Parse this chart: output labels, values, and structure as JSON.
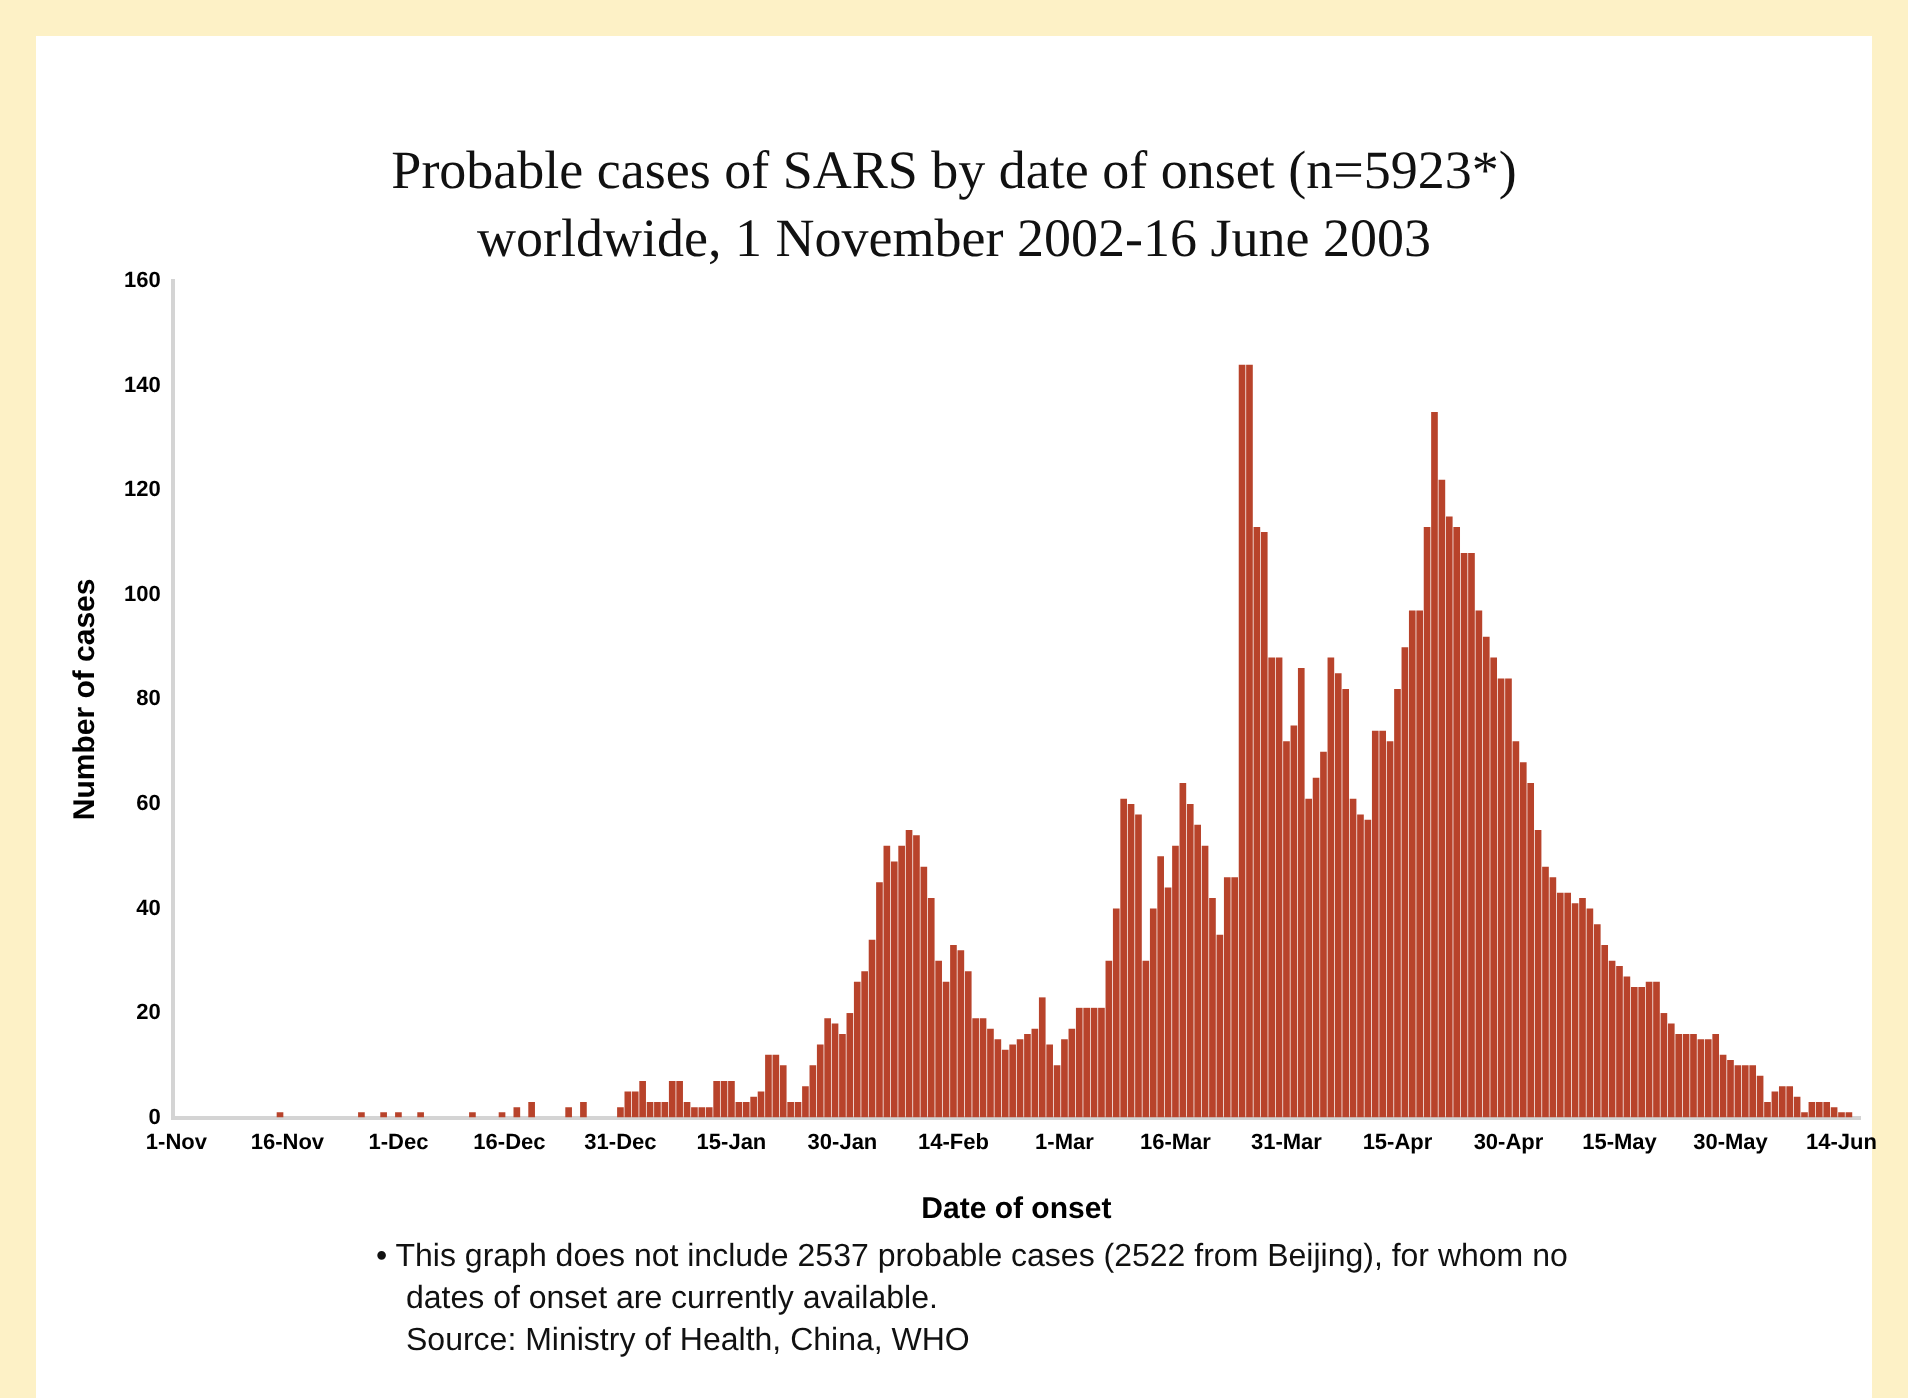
{
  "chart_data": {
    "type": "bar",
    "title": "Probable cases of SARS by date of onset (n=5923*)",
    "subtitle": "worldwide, 1 November 2002-16 June 2003",
    "xlabel": "Date of onset",
    "ylabel": "Number of cases",
    "categories": [
      "1-Nov",
      null,
      null,
      null,
      null,
      null,
      null,
      null,
      null,
      null,
      null,
      null,
      null,
      null,
      null,
      "16-Nov",
      null,
      null,
      null,
      null,
      null,
      null,
      null,
      null,
      null,
      null,
      null,
      null,
      null,
      null,
      "1-Dec",
      null,
      null,
      null,
      null,
      null,
      null,
      null,
      null,
      null,
      null,
      null,
      null,
      null,
      null,
      "16-Dec",
      null,
      null,
      null,
      null,
      null,
      null,
      null,
      null,
      null,
      null,
      null,
      null,
      null,
      null,
      "31-Dec",
      null,
      null,
      null,
      null,
      null,
      null,
      null,
      null,
      null,
      null,
      null,
      null,
      null,
      null,
      "15-Jan",
      null,
      null,
      null,
      null,
      null,
      null,
      null,
      null,
      null,
      null,
      null,
      null,
      null,
      null,
      "30-Jan",
      null,
      null,
      null,
      null,
      null,
      null,
      null,
      null,
      null,
      null,
      null,
      null,
      null,
      null,
      "14-Feb",
      null,
      null,
      null,
      null,
      null,
      null,
      null,
      null,
      null,
      null,
      null,
      null,
      null,
      null,
      "1-Mar",
      null,
      null,
      null,
      null,
      null,
      null,
      null,
      null,
      null,
      null,
      null,
      null,
      null,
      null,
      "16-Mar",
      null,
      null,
      null,
      null,
      null,
      null,
      null,
      null,
      null,
      null,
      null,
      null,
      null,
      null,
      "31-Mar",
      null,
      null,
      null,
      null,
      null,
      null,
      null,
      null,
      null,
      null,
      null,
      null,
      null,
      null,
      "15-Apr",
      null,
      null,
      null,
      null,
      null,
      null,
      null,
      null,
      null,
      null,
      null,
      null,
      null,
      null,
      "30-Apr",
      null,
      null,
      null,
      null,
      null,
      null,
      null,
      null,
      null,
      null,
      null,
      null,
      null,
      null,
      "15-May",
      null,
      null,
      null,
      null,
      null,
      null,
      null,
      null,
      null,
      null,
      null,
      null,
      null,
      null,
      "30-May",
      null,
      null,
      null,
      null,
      null,
      null,
      null,
      null,
      null,
      null,
      null,
      null,
      null,
      null,
      "14-Jun",
      null,
      null
    ],
    "values": [
      0,
      0,
      0,
      0,
      0,
      0,
      0,
      0,
      0,
      0,
      0,
      0,
      0,
      0,
      1,
      0,
      0,
      0,
      0,
      0,
      0,
      0,
      0,
      0,
      0,
      1,
      0,
      0,
      1,
      0,
      1,
      0,
      0,
      1,
      0,
      0,
      0,
      0,
      0,
      0,
      1,
      0,
      0,
      0,
      1,
      0,
      2,
      0,
      3,
      0,
      0,
      0,
      0,
      2,
      0,
      3,
      0,
      0,
      0,
      0,
      2,
      5,
      5,
      7,
      3,
      3,
      3,
      7,
      7,
      3,
      2,
      2,
      2,
      7,
      7,
      7,
      3,
      3,
      4,
      5,
      12,
      12,
      10,
      3,
      3,
      6,
      10,
      14,
      19,
      18,
      16,
      20,
      26,
      28,
      34,
      45,
      52,
      49,
      52,
      55,
      54,
      48,
      42,
      30,
      26,
      33,
      32,
      28,
      19,
      19,
      17,
      15,
      13,
      14,
      15,
      16,
      17,
      23,
      14,
      10,
      15,
      17,
      21,
      21,
      21,
      21,
      30,
      40,
      61,
      60,
      58,
      30,
      40,
      50,
      44,
      52,
      64,
      60,
      56,
      52,
      42,
      35,
      46,
      46,
      144,
      144,
      113,
      112,
      88,
      88,
      72,
      75,
      86,
      61,
      65,
      70,
      88,
      85,
      82,
      61,
      58,
      57,
      74,
      74,
      72,
      82,
      90,
      97,
      97,
      113,
      135,
      122,
      115,
      113,
      108,
      108,
      97,
      92,
      88,
      84,
      84,
      72,
      68,
      64,
      55,
      48,
      46,
      43,
      43,
      41,
      42,
      40,
      37,
      33,
      30,
      29,
      27,
      25,
      25,
      26,
      26,
      20,
      18,
      16,
      16,
      16,
      15,
      15,
      16,
      12,
      11,
      10,
      10,
      10,
      8,
      3,
      5,
      6,
      6,
      4,
      1,
      3,
      3,
      3,
      2,
      1,
      1,
      0
    ],
    "color": "#b8432b",
    "ylim": [
      0,
      160
    ],
    "yticks": [
      0,
      20,
      40,
      60,
      80,
      100,
      120,
      140,
      160
    ],
    "grid": false,
    "annotations": [
      "• This graph does not include 2537 probable cases (2522 from Beijing), for whom no dates of onset are currently available.",
      "Source: Ministry of Health, China, WHO"
    ]
  }
}
